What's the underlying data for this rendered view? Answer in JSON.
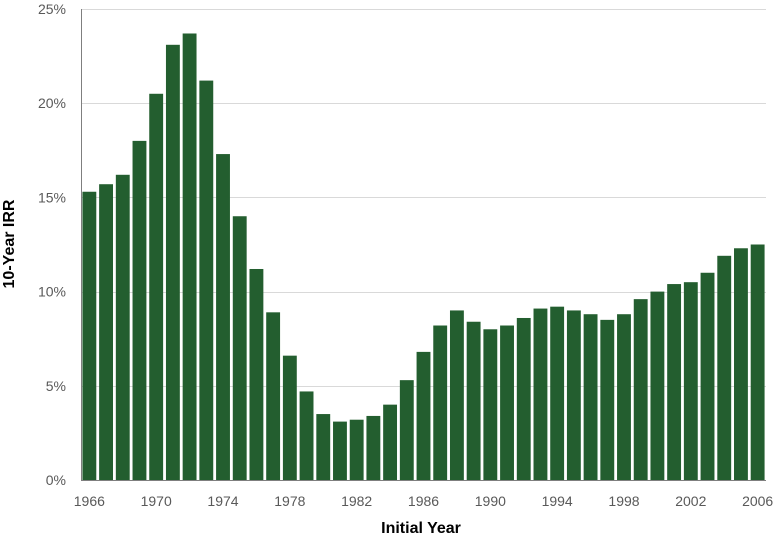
{
  "chart_data": {
    "type": "bar",
    "xlabel": "Initial Year",
    "ylabel": "10-Year IRR",
    "ylim": [
      0,
      25
    ],
    "y_ticks": [
      0,
      5,
      10,
      15,
      20,
      25
    ],
    "y_tick_labels": [
      "0%",
      "5%",
      "10%",
      "15%",
      "20%",
      "25%"
    ],
    "x_tick_labels": [
      "1966",
      "1970",
      "1974",
      "1978",
      "1982",
      "1986",
      "1990",
      "1994",
      "1998",
      "2002",
      "2006"
    ],
    "grid": true,
    "bar_color": "#235e2f",
    "categories": [
      1966,
      1967,
      1968,
      1969,
      1970,
      1971,
      1972,
      1973,
      1974,
      1975,
      1976,
      1977,
      1978,
      1979,
      1980,
      1981,
      1982,
      1983,
      1984,
      1985,
      1986,
      1987,
      1988,
      1989,
      1990,
      1991,
      1992,
      1993,
      1994,
      1995,
      1996,
      1997,
      1998,
      1999,
      2000,
      2001,
      2002,
      2003,
      2004,
      2005,
      2006
    ],
    "values": [
      15.3,
      15.7,
      16.2,
      18.0,
      20.5,
      23.1,
      23.7,
      21.2,
      17.3,
      14.0,
      11.2,
      8.9,
      6.6,
      4.7,
      3.5,
      3.1,
      3.2,
      3.4,
      4.0,
      5.3,
      6.8,
      8.2,
      9.0,
      8.4,
      8.0,
      8.2,
      8.6,
      9.1,
      9.2,
      9.0,
      8.8,
      8.5,
      8.8,
      9.6,
      10.0,
      10.4,
      10.5,
      11.0,
      11.9,
      12.3,
      12.5
    ]
  }
}
